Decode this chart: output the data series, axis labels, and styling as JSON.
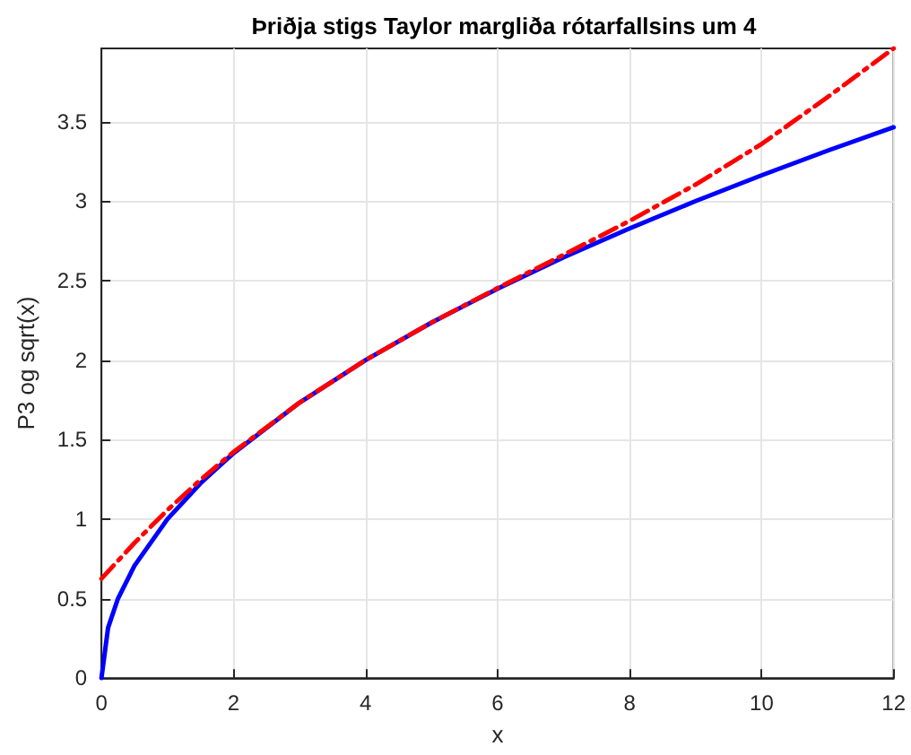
{
  "chart_data": {
    "type": "line",
    "title": "Þriðja stigs Taylor margliða rótarfallsins um 4",
    "xlabel": "x",
    "ylabel": "P3 og sqrt(x)",
    "series": [
      {
        "color": "#0000ff",
        "line_style": "solid",
        "x": [
          0,
          0.1,
          0.25,
          0.5,
          1,
          1.5,
          2,
          3,
          4,
          5,
          6,
          7,
          8,
          9,
          10,
          11,
          12
        ],
        "values": [
          0,
          0.316,
          0.5,
          0.707,
          1,
          1.225,
          1.414,
          1.732,
          2,
          2.236,
          2.449,
          2.646,
          2.828,
          3,
          3.162,
          3.317,
          3.464
        ]
      },
      {
        "color": "#ff0000",
        "line_style": "dashed",
        "x": [
          0,
          0.5,
          1,
          1.5,
          2,
          3,
          4,
          5,
          6,
          7,
          8,
          9,
          10,
          11,
          12
        ],
        "values": [
          0.625,
          0.85,
          1.057,
          1.247,
          1.422,
          1.732,
          2,
          2.236,
          2.453,
          2.662,
          2.875,
          3.104,
          3.359,
          3.654,
          3.96
        ]
      }
    ],
    "xlim": [
      0,
      12
    ],
    "xticks": [
      0,
      2,
      4,
      6,
      8,
      10,
      12
    ],
    "ylim": [
      0,
      3.96
    ],
    "yticks": [
      0,
      0.5,
      1,
      1.5,
      2,
      2.5,
      3,
      3.5
    ],
    "grid": true,
    "marker": "none"
  }
}
